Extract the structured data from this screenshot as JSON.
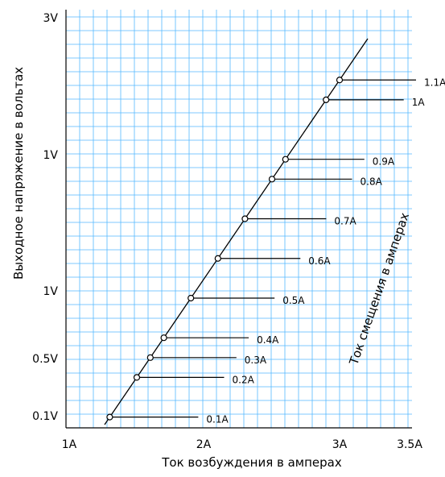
{
  "chart_data": {
    "type": "line",
    "xlabel": "Ток возбуждения в амперах",
    "ylabel": "Выходное напряжение в вольтах",
    "annotation": "Ток смещения в амперах",
    "x_tick_labels": [
      "1A",
      "2A",
      "3A",
      "3.5A"
    ],
    "y_tick_labels": [
      "3V",
      "1V",
      "1V",
      "0.5V",
      "0.1V"
    ],
    "grid": true,
    "colors": {
      "grid": "#55b9ff",
      "line": "#000000"
    },
    "series": [
      {
        "points": [
          {
            "current": 1.3,
            "label": "0.1A"
          },
          {
            "current": 1.5,
            "label": "0.2A"
          },
          {
            "current": 1.6,
            "label": "0.3A"
          },
          {
            "current": 1.7,
            "label": "0.4A"
          },
          {
            "current": 1.9,
            "label": "0.5A"
          },
          {
            "current": 2.1,
            "label": "0.6A"
          },
          {
            "current": 2.3,
            "label": "0.7A"
          },
          {
            "current": 2.5,
            "label": "0.8A"
          },
          {
            "current": 2.6,
            "label": "0.9A"
          },
          {
            "current": 2.9,
            "label": "1A"
          },
          {
            "current": 3.0,
            "label": "1.1A"
          }
        ]
      }
    ]
  }
}
